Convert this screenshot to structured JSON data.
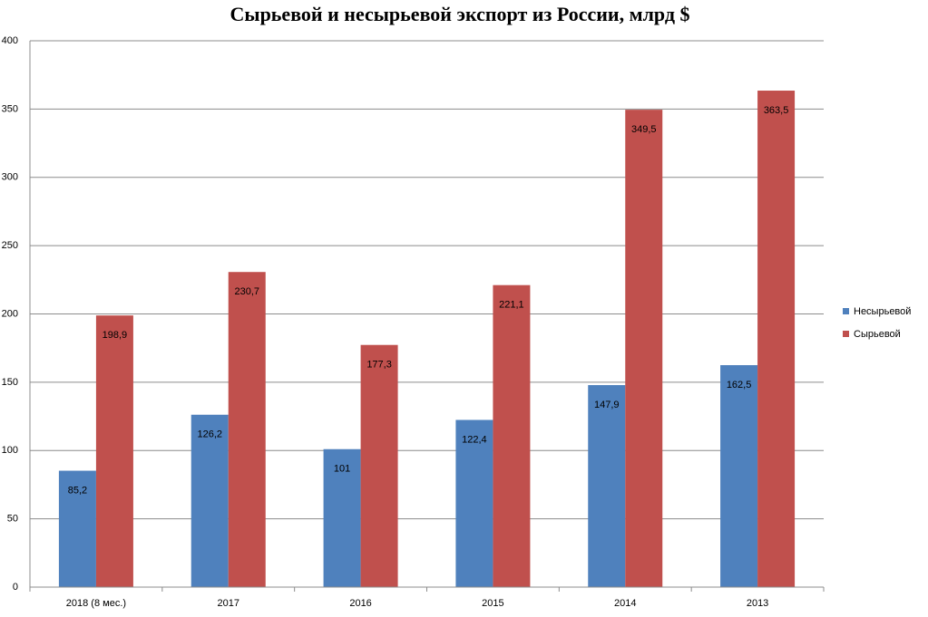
{
  "chart_data": {
    "type": "bar",
    "title": "Сырьевой и несырьевой экспорт из России, млрд $",
    "categories": [
      "2018 (8 мес.)",
      "2017",
      "2016",
      "2015",
      "2014",
      "2013"
    ],
    "series": [
      {
        "name": "Несырьевой",
        "color": "#4f81bd",
        "values": [
          85.2,
          126.2,
          101,
          122.4,
          147.9,
          162.5
        ],
        "value_labels": [
          "85,2",
          "126,2",
          "101",
          "122,4",
          "147,9",
          "162,5"
        ]
      },
      {
        "name": "Сырьевой",
        "color": "#c0504d",
        "values": [
          198.9,
          230.7,
          177.3,
          221.1,
          349.5,
          363.5
        ],
        "value_labels": [
          "198,9",
          "230,7",
          "177,3",
          "221,1",
          "349,5",
          "363,5"
        ]
      }
    ],
    "ylim": [
      0,
      400
    ],
    "yticks": [
      0,
      50,
      100,
      150,
      200,
      250,
      300,
      350,
      400
    ],
    "grid": true,
    "legend": "right"
  }
}
